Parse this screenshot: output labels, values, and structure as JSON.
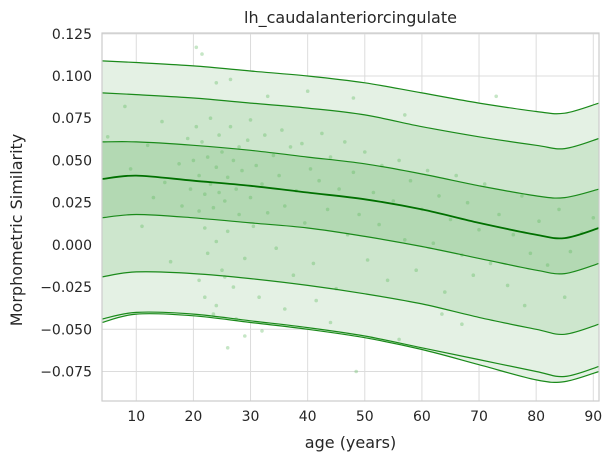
{
  "chart_data": {
    "type": "area",
    "title": "lh_caudalanteriorcingulate",
    "xlabel": "age (years)",
    "ylabel": "Morphometric Similarity",
    "xlim": [
      4,
      91
    ],
    "ylim": [
      -0.0925,
      0.1255
    ],
    "xticks": [
      10,
      20,
      30,
      40,
      50,
      60,
      70,
      80,
      90
    ],
    "yticks": [
      -0.075,
      -0.05,
      -0.025,
      0.0,
      0.025,
      0.05,
      0.075,
      0.1,
      0.125
    ],
    "xtick_labels": [
      "10",
      "20",
      "30",
      "40",
      "50",
      "60",
      "70",
      "80",
      "90"
    ],
    "ytick_labels": [
      "−0.075",
      "−0.050",
      "−0.025",
      "0.000",
      "0.025",
      "0.050",
      "0.075",
      "0.100",
      "0.125"
    ],
    "grid": true,
    "colors": {
      "line": "#1a8a1a",
      "median": "#007000",
      "band_outer": "#e4f1e4",
      "band_mid": "#cde6cd",
      "band_inner": "#b3d9b3",
      "scatter": "#5cb85c"
    },
    "x": [
      4,
      10,
      20,
      30,
      40,
      50,
      60,
      70,
      80,
      85,
      91
    ],
    "series": [
      {
        "values": [
          0.109,
          0.108,
          0.106,
          0.103,
          0.1,
          0.096,
          0.09,
          0.084,
          0.079,
          0.078,
          0.084
        ]
      },
      {
        "values": [
          0.09,
          0.089,
          0.087,
          0.084,
          0.081,
          0.077,
          0.07,
          0.064,
          0.059,
          0.057,
          0.063
        ]
      },
      {
        "values": [
          0.061,
          0.061,
          0.059,
          0.056,
          0.052,
          0.048,
          0.042,
          0.035,
          0.029,
          0.028,
          0.033
        ]
      },
      {
        "values": [
          0.039,
          0.041,
          0.038,
          0.035,
          0.031,
          0.027,
          0.021,
          0.013,
          0.006,
          0.004,
          0.01
        ]
      },
      {
        "values": [
          0.016,
          0.018,
          0.016,
          0.013,
          0.01,
          0.005,
          -0.001,
          -0.008,
          -0.015,
          -0.017,
          -0.011
        ]
      },
      {
        "values": [
          -0.019,
          -0.016,
          -0.017,
          -0.02,
          -0.024,
          -0.029,
          -0.035,
          -0.043,
          -0.05,
          -0.053,
          -0.047
        ]
      },
      {
        "values": [
          -0.044,
          -0.04,
          -0.041,
          -0.045,
          -0.049,
          -0.054,
          -0.061,
          -0.068,
          -0.075,
          -0.078,
          -0.072
        ]
      },
      {
        "values": [
          -0.046,
          -0.041,
          -0.042,
          -0.046,
          -0.05,
          -0.055,
          -0.062,
          -0.071,
          -0.08,
          -0.081,
          -0.075
        ]
      }
    ],
    "points": [
      [
        20.5,
        0.117
      ],
      [
        21.5,
        0.113
      ],
      [
        24.0,
        0.096
      ],
      [
        26.5,
        0.098
      ],
      [
        33.0,
        0.088
      ],
      [
        40.0,
        0.091
      ],
      [
        48.0,
        0.087
      ],
      [
        57.0,
        0.077
      ],
      [
        73.0,
        0.088
      ],
      [
        5.0,
        0.064
      ],
      [
        8.0,
        0.082
      ],
      [
        12.0,
        0.059
      ],
      [
        14.5,
        0.073
      ],
      [
        17.5,
        0.048
      ],
      [
        19.0,
        0.063
      ],
      [
        19.5,
        0.033
      ],
      [
        20.0,
        0.05
      ],
      [
        20.5,
        0.07
      ],
      [
        21.0,
        0.041
      ],
      [
        21.0,
        0.02
      ],
      [
        21.5,
        0.061
      ],
      [
        22.0,
        0.03
      ],
      [
        22.0,
        0.01
      ],
      [
        22.5,
        0.052
      ],
      [
        22.5,
        -0.005
      ],
      [
        23.0,
        0.075
      ],
      [
        23.0,
        0.036
      ],
      [
        23.5,
        0.022
      ],
      [
        24.0,
        0.046
      ],
      [
        24.0,
        0.002
      ],
      [
        24.5,
        0.065
      ],
      [
        24.5,
        0.031
      ],
      [
        25.0,
        -0.015
      ],
      [
        25.0,
        0.055
      ],
      [
        25.5,
        0.026
      ],
      [
        26.0,
        0.04
      ],
      [
        26.0,
        0.008
      ],
      [
        26.5,
        0.07
      ],
      [
        27.0,
        0.05
      ],
      [
        27.0,
        -0.025
      ],
      [
        27.5,
        0.033
      ],
      [
        28.0,
        0.018
      ],
      [
        28.0,
        0.058
      ],
      [
        28.5,
        0.044
      ],
      [
        29.0,
        -0.008
      ],
      [
        29.5,
        0.062
      ],
      [
        30.0,
        0.028
      ],
      [
        30.0,
        0.074
      ],
      [
        30.5,
        0.011
      ],
      [
        31.0,
        0.047
      ],
      [
        31.5,
        -0.031
      ],
      [
        32.0,
        0.036
      ],
      [
        32.5,
        0.065
      ],
      [
        33.0,
        0.019
      ],
      [
        34.0,
        0.053
      ],
      [
        34.5,
        -0.002
      ],
      [
        35.0,
        0.041
      ],
      [
        35.5,
        0.068
      ],
      [
        36.0,
        0.023
      ],
      [
        37.0,
        0.058
      ],
      [
        37.5,
        -0.018
      ],
      [
        38.0,
        0.032
      ],
      [
        39.0,
        0.06
      ],
      [
        39.5,
        0.013
      ],
      [
        40.5,
        0.045
      ],
      [
        41.0,
        -0.011
      ],
      [
        42.0,
        0.038
      ],
      [
        42.5,
        0.066
      ],
      [
        43.5,
        0.021
      ],
      [
        44.0,
        0.052
      ],
      [
        45.0,
        -0.026
      ],
      [
        45.5,
        0.033
      ],
      [
        46.5,
        0.061
      ],
      [
        47.0,
        0.006
      ],
      [
        48.0,
        0.043
      ],
      [
        49.0,
        0.018
      ],
      [
        50.0,
        0.055
      ],
      [
        50.5,
        -0.009
      ],
      [
        51.5,
        0.031
      ],
      [
        52.5,
        0.012
      ],
      [
        53.0,
        0.047
      ],
      [
        54.0,
        -0.021
      ],
      [
        55.0,
        0.026
      ],
      [
        56.0,
        0.05
      ],
      [
        57.0,
        0.003
      ],
      [
        58.0,
        0.038
      ],
      [
        59.0,
        -0.015
      ],
      [
        60.0,
        0.021
      ],
      [
        61.0,
        0.044
      ],
      [
        62.0,
        0.001
      ],
      [
        63.0,
        0.029
      ],
      [
        64.0,
        -0.028
      ],
      [
        65.0,
        0.015
      ],
      [
        66.0,
        0.041
      ],
      [
        67.0,
        -0.006
      ],
      [
        68.0,
        0.025
      ],
      [
        69.0,
        -0.018
      ],
      [
        70.0,
        0.009
      ],
      [
        71.0,
        0.036
      ],
      [
        72.0,
        -0.011
      ],
      [
        73.5,
        0.018
      ],
      [
        75.0,
        -0.024
      ],
      [
        76.0,
        0.006
      ],
      [
        77.5,
        0.029
      ],
      [
        79.0,
        -0.005
      ],
      [
        80.5,
        0.014
      ],
      [
        82.0,
        -0.012
      ],
      [
        84.0,
        0.021
      ],
      [
        86.0,
        -0.004
      ],
      [
        88.0,
        0.007
      ],
      [
        90.0,
        0.016
      ],
      [
        23.5,
        -0.041
      ],
      [
        26.0,
        -0.061
      ],
      [
        32.0,
        -0.051
      ],
      [
        44.0,
        -0.046
      ],
      [
        56.0,
        -0.056
      ],
      [
        67.0,
        -0.047
      ],
      [
        48.5,
        -0.075
      ],
      [
        29.0,
        -0.054
      ],
      [
        21.0,
        -0.021
      ],
      [
        22.0,
        -0.031
      ],
      [
        24.0,
        -0.036
      ],
      [
        25.5,
        -0.019
      ],
      [
        27.5,
        -0.044
      ],
      [
        36.0,
        -0.038
      ],
      [
        41.5,
        -0.033
      ],
      [
        63.5,
        -0.041
      ],
      [
        78.0,
        -0.036
      ],
      [
        85.0,
        -0.031
      ],
      [
        11.0,
        0.011
      ],
      [
        15.0,
        0.037
      ],
      [
        18.0,
        0.023
      ],
      [
        9.0,
        0.045
      ],
      [
        16.0,
        -0.01
      ],
      [
        13.0,
        0.028
      ]
    ]
  }
}
